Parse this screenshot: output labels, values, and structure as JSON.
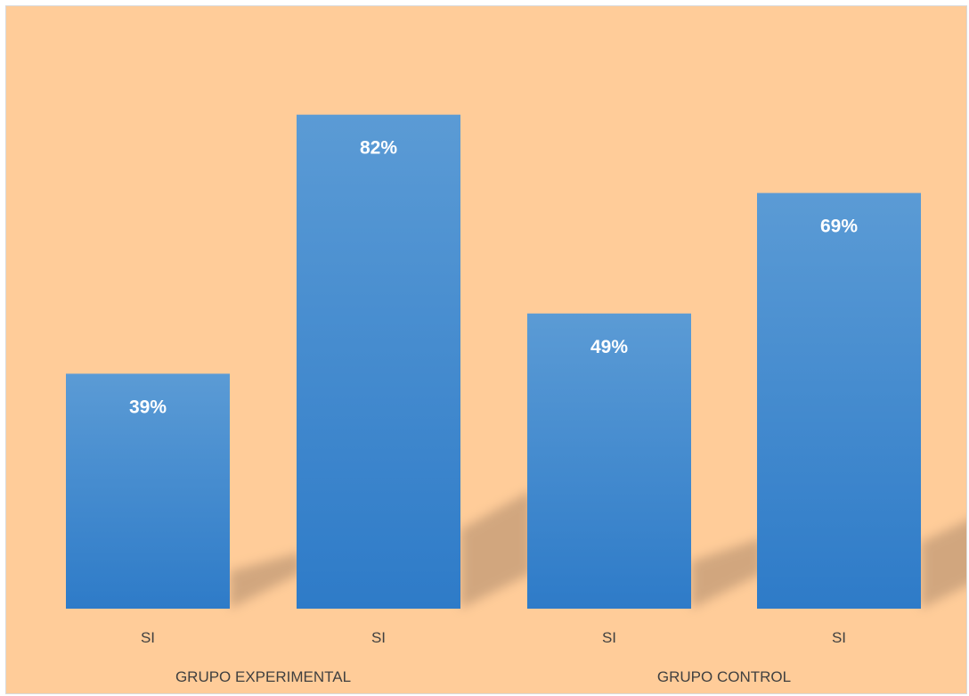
{
  "chart_data": {
    "type": "bar",
    "categories": [
      "SI",
      "SI",
      "SI",
      "SI"
    ],
    "groups": [
      {
        "label": "GRUPO EXPERIMENTAL",
        "indices": [
          0,
          1
        ]
      },
      {
        "label": "GRUPO CONTROL",
        "indices": [
          2,
          3
        ]
      }
    ],
    "values": [
      39,
      82,
      49,
      69
    ],
    "data_labels": [
      "39%",
      "82%",
      "49%",
      "69%"
    ],
    "title": "",
    "xlabel": "",
    "ylabel": "",
    "ylim": [
      0,
      100
    ],
    "grid": false,
    "legend": "none",
    "colors": {
      "background": "#ffcc99",
      "bar_top": "#5b9bd5",
      "bar_bottom": "#2e7bc8",
      "shadow": "#c9a07a",
      "data_label": "#ffffff",
      "axis_label": "#404040"
    }
  }
}
